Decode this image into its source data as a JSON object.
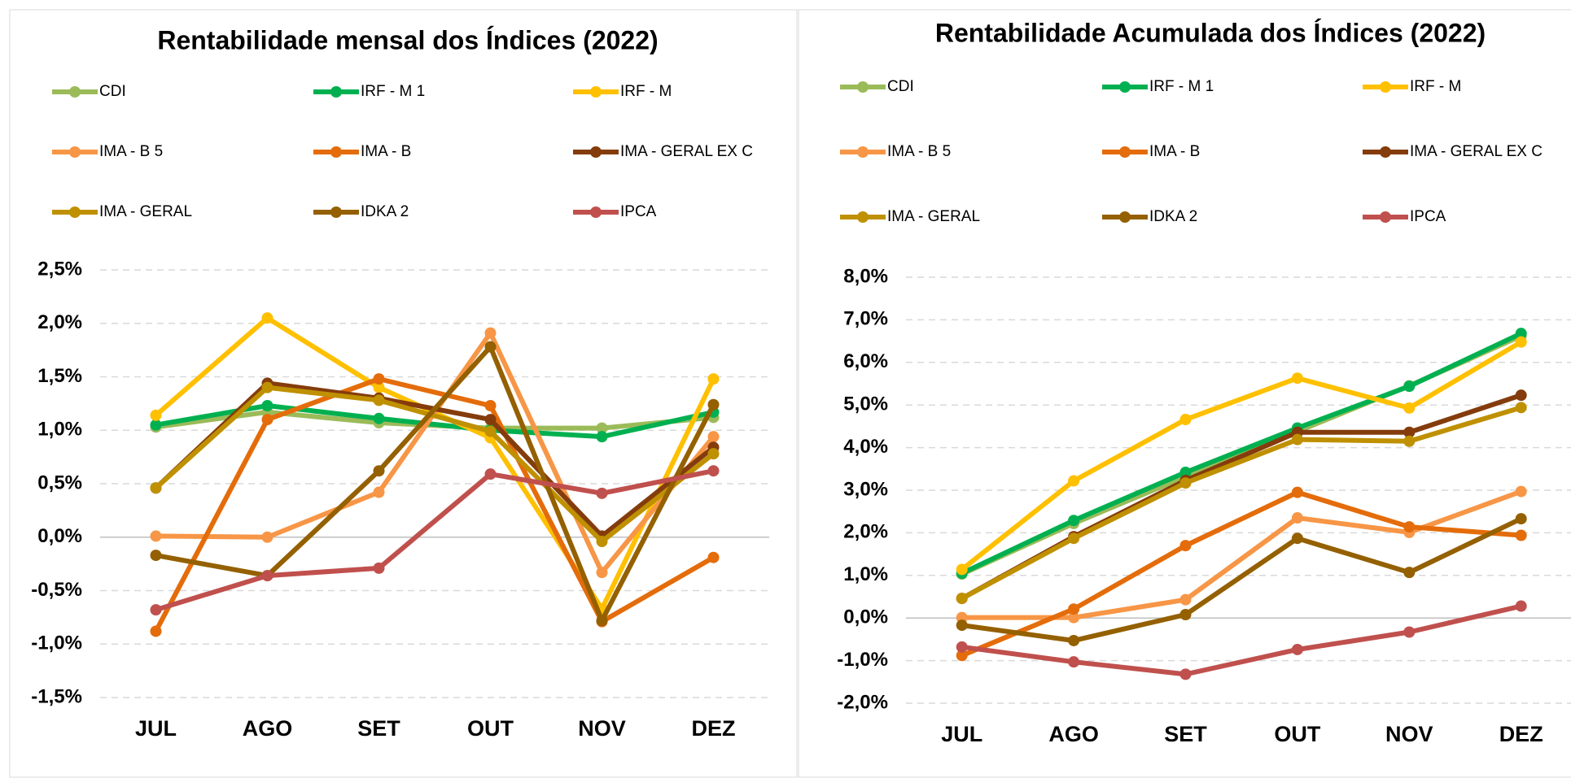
{
  "chart_data": [
    {
      "type": "line",
      "title": "Rentabilidade mensal dos Índices (2022)",
      "categories": [
        "JUL",
        "AGO",
        "SET",
        "OUT",
        "NOV",
        "DEZ"
      ],
      "ylim": [
        -1.5,
        2.5
      ],
      "yticks": [
        {
          "value": -1.5,
          "label": "-1,5%"
        },
        {
          "value": -1,
          "label": "-1,0%"
        },
        {
          "value": -0.5,
          "label": "-0,5%"
        },
        {
          "value": 0,
          "label": "0,0%"
        },
        {
          "value": 0.5,
          "label": "0,5%"
        },
        {
          "value": 1,
          "label": "1,0%"
        },
        {
          "value": 1.5,
          "label": "1,5%"
        },
        {
          "value": 2,
          "label": "2,0%"
        },
        {
          "value": 2.5,
          "label": "2,5%"
        }
      ],
      "grid": true,
      "legend": "top",
      "series": [
        {
          "name": "CDI",
          "color": "#9bbb59",
          "values": [
            1.03,
            1.17,
            1.07,
            1.02,
            1.02,
            1.12
          ]
        },
        {
          "name": "IRF - M 1",
          "color": "#00b050",
          "values": [
            1.05,
            1.23,
            1.11,
            1.0,
            0.94,
            1.17
          ]
        },
        {
          "name": "IRF - M",
          "color": "#ffc000",
          "values": [
            1.14,
            2.05,
            1.4,
            0.93,
            -0.67,
            1.48
          ]
        },
        {
          "name": "IMA - B 5",
          "color": "#f79646",
          "values": [
            0.01,
            0.0,
            0.42,
            1.91,
            -0.33,
            0.94
          ]
        },
        {
          "name": "IMA - B",
          "color": "#e46c0a",
          "values": [
            -0.88,
            1.1,
            1.48,
            1.23,
            -0.79,
            -0.19
          ]
        },
        {
          "name": "IMA - GERAL EX C",
          "color": "#843c0c",
          "values": [
            0.46,
            1.44,
            1.3,
            1.1,
            0.01,
            0.84
          ]
        },
        {
          "name": "IMA - GERAL",
          "color": "#bf9000",
          "values": [
            0.46,
            1.4,
            1.28,
            0.99,
            -0.04,
            0.78
          ]
        },
        {
          "name": "IDKA 2",
          "color": "#946000",
          "values": [
            -0.17,
            -0.36,
            0.62,
            1.78,
            -0.78,
            1.24
          ]
        },
        {
          "name": "IPCA",
          "color": "#c0504d",
          "values": [
            -0.68,
            -0.36,
            -0.29,
            0.59,
            0.41,
            0.62
          ]
        }
      ]
    },
    {
      "type": "line",
      "title": "Rentabilidade Acumulada dos Índices (2022)",
      "categories": [
        "JUL",
        "AGO",
        "SET",
        "OUT",
        "NOV",
        "DEZ"
      ],
      "ylim": [
        -2,
        8
      ],
      "yticks": [
        {
          "value": -2,
          "label": "-2,0%"
        },
        {
          "value": -1,
          "label": "-1,0%"
        },
        {
          "value": 0,
          "label": "0,0%"
        },
        {
          "value": 1,
          "label": "1,0%"
        },
        {
          "value": 2,
          "label": "2,0%"
        },
        {
          "value": 3,
          "label": "3,0%"
        },
        {
          "value": 4,
          "label": "4,0%"
        },
        {
          "value": 5,
          "label": "5,0%"
        },
        {
          "value": 6,
          "label": "6,0%"
        },
        {
          "value": 7,
          "label": "7,0%"
        },
        {
          "value": 8,
          "label": "8,0%"
        }
      ],
      "grid": true,
      "legend": "top",
      "series": [
        {
          "name": "CDI",
          "color": "#9bbb59",
          "values": [
            1.03,
            2.22,
            3.32,
            4.38,
            5.45,
            6.62
          ]
        },
        {
          "name": "IRF - M 1",
          "color": "#00b050",
          "values": [
            1.05,
            2.29,
            3.42,
            4.46,
            5.44,
            6.68
          ]
        },
        {
          "name": "IRF - M",
          "color": "#ffc000",
          "values": [
            1.14,
            3.22,
            4.66,
            5.63,
            4.93,
            6.48
          ]
        },
        {
          "name": "IMA - B 5",
          "color": "#f79646",
          "values": [
            0.01,
            0.01,
            0.43,
            2.35,
            2.01,
            2.97
          ]
        },
        {
          "name": "IMA - B",
          "color": "#e46c0a",
          "values": [
            -0.88,
            0.21,
            1.7,
            2.95,
            2.14,
            1.94
          ]
        },
        {
          "name": "IMA - GERAL EX C",
          "color": "#843c0c",
          "values": [
            0.46,
            1.91,
            3.23,
            4.36,
            4.36,
            5.23
          ]
        },
        {
          "name": "IMA - GERAL",
          "color": "#bf9000",
          "values": [
            0.46,
            1.87,
            3.17,
            4.19,
            4.15,
            4.94
          ]
        },
        {
          "name": "IDKA 2",
          "color": "#946000",
          "values": [
            -0.17,
            -0.53,
            0.08,
            1.87,
            1.07,
            2.33
          ]
        },
        {
          "name": "IPCA",
          "color": "#c0504d",
          "values": [
            -0.68,
            -1.03,
            -1.32,
            -0.74,
            -0.33,
            0.28
          ]
        }
      ]
    }
  ]
}
